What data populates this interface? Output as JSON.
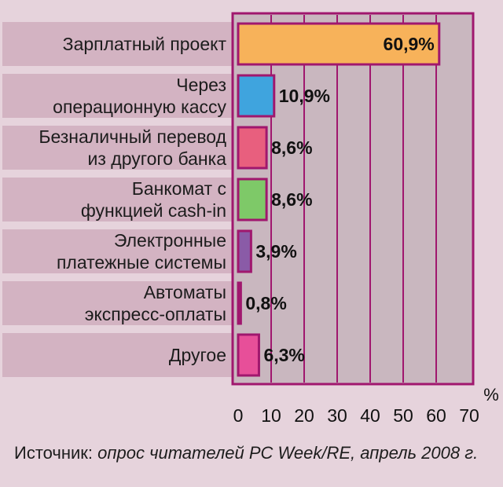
{
  "chart_data": {
    "type": "bar",
    "orientation": "horizontal",
    "categories": [
      [
        "Зарплатный проект"
      ],
      [
        "Через",
        "операционную кассу"
      ],
      [
        "Безналичный перевод",
        "из другого банка"
      ],
      [
        "Банкомат с",
        "функцией cash-in"
      ],
      [
        "Электронные",
        "платежные системы"
      ],
      [
        "Автоматы",
        "экспресс-оплаты"
      ],
      [
        "Другое"
      ]
    ],
    "values": [
      60.9,
      10.9,
      8.6,
      8.6,
      3.9,
      0.8,
      6.3
    ],
    "value_labels": [
      "60,9%",
      "10,9%",
      "8,6%",
      "8,6%",
      "3,9%",
      "0,8%",
      "6,3%"
    ],
    "bar_colors": [
      "#f7b25a",
      "#3fa4de",
      "#e85f7e",
      "#7ec968",
      "#8a5ba7",
      "#a01f6c",
      "#e74f99"
    ],
    "bar_border_color": "#a0176e",
    "xlim": [
      0,
      70
    ],
    "xticks": [
      "0",
      "10",
      "20",
      "30",
      "40",
      "50",
      "60",
      "70"
    ],
    "unit_label": "%",
    "grid": true
  },
  "source": {
    "prefix": "Источник: ",
    "text": "опрос читателей PC Week/RE, апрель 2008 г."
  }
}
